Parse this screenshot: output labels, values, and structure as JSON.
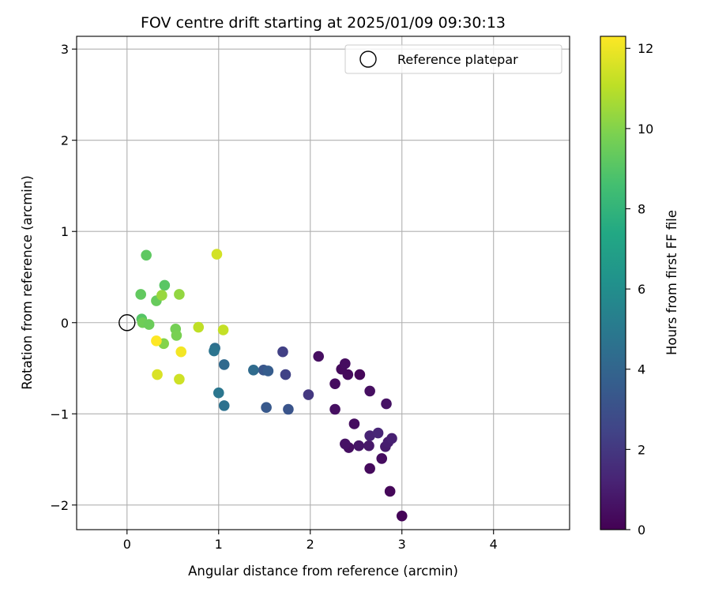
{
  "chart_data": {
    "type": "scatter",
    "title": "FOV centre drift starting at 2025/01/09 09:30:13",
    "xlabel": "Angular distance from reference (arcmin)",
    "ylabel": "Rotation from reference (arcmin)",
    "xlim": [
      -0.55,
      4.83
    ],
    "ylim": [
      -2.27,
      3.14
    ],
    "x_ticks": [
      0,
      1,
      2,
      3,
      4
    ],
    "y_ticks": [
      -2,
      -1,
      0,
      1,
      2,
      3
    ],
    "x_tick_labels": [
      "0",
      "1",
      "2",
      "3",
      "4"
    ],
    "y_tick_labels": [
      "−2",
      "−1",
      "0",
      "1",
      "2",
      "3"
    ],
    "grid": true,
    "legend": {
      "placement": "top-right",
      "entries": [
        {
          "label": "Reference platepar",
          "marker": "open-circle",
          "color": "#000000"
        }
      ]
    },
    "reference_point": {
      "x": 0,
      "y": 0
    },
    "colorbar": {
      "label": "Hours from first FF file",
      "colormap": "viridis",
      "range": [
        0,
        12.3
      ],
      "ticks": [
        0,
        2,
        4,
        6,
        8,
        10,
        12
      ],
      "tick_labels": [
        "0",
        "2",
        "4",
        "6",
        "8",
        "10",
        "12"
      ]
    },
    "points": [
      {
        "x": 3.0,
        "y": -2.12,
        "c": 0.1
      },
      {
        "x": 2.87,
        "y": -1.85,
        "c": 0.2
      },
      {
        "x": 2.65,
        "y": -1.6,
        "c": 0.3
      },
      {
        "x": 2.78,
        "y": -1.49,
        "c": 0.4
      },
      {
        "x": 2.42,
        "y": -1.37,
        "c": 0.5
      },
      {
        "x": 2.38,
        "y": -1.33,
        "c": 0.6
      },
      {
        "x": 2.53,
        "y": -1.35,
        "c": 0.7
      },
      {
        "x": 2.64,
        "y": -1.35,
        "c": 0.8
      },
      {
        "x": 2.82,
        "y": -1.36,
        "c": 0.9
      },
      {
        "x": 2.85,
        "y": -1.31,
        "c": 1.0
      },
      {
        "x": 2.89,
        "y": -1.27,
        "c": 1.1
      },
      {
        "x": 2.65,
        "y": -1.24,
        "c": 1.2
      },
      {
        "x": 2.74,
        "y": -1.21,
        "c": 1.3
      },
      {
        "x": 2.48,
        "y": -1.11,
        "c": 0.4
      },
      {
        "x": 2.27,
        "y": -0.95,
        "c": 0.5
      },
      {
        "x": 2.83,
        "y": -0.89,
        "c": 0.6
      },
      {
        "x": 2.65,
        "y": -0.75,
        "c": 0.5
      },
      {
        "x": 2.27,
        "y": -0.67,
        "c": 0.4
      },
      {
        "x": 2.41,
        "y": -0.57,
        "c": 0.3
      },
      {
        "x": 2.54,
        "y": -0.57,
        "c": 0.2
      },
      {
        "x": 2.34,
        "y": -0.51,
        "c": 0.3
      },
      {
        "x": 2.38,
        "y": -0.45,
        "c": 0.4
      },
      {
        "x": 2.09,
        "y": -0.37,
        "c": 0.5
      },
      {
        "x": 1.98,
        "y": -0.79,
        "c": 2.0
      },
      {
        "x": 1.73,
        "y": -0.57,
        "c": 2.4
      },
      {
        "x": 1.7,
        "y": -0.32,
        "c": 2.3
      },
      {
        "x": 1.76,
        "y": -0.95,
        "c": 3.2
      },
      {
        "x": 1.52,
        "y": -0.93,
        "c": 3.4
      },
      {
        "x": 1.49,
        "y": -0.52,
        "c": 3.3
      },
      {
        "x": 1.54,
        "y": -0.53,
        "c": 3.6
      },
      {
        "x": 1.38,
        "y": -0.52,
        "c": 4.3
      },
      {
        "x": 1.06,
        "y": -0.46,
        "c": 4.2
      },
      {
        "x": 1.06,
        "y": -0.91,
        "c": 4.6
      },
      {
        "x": 1.0,
        "y": -0.77,
        "c": 4.8
      },
      {
        "x": 0.96,
        "y": -0.28,
        "c": 4.5
      },
      {
        "x": 0.95,
        "y": -0.31,
        "c": 4.7
      },
      {
        "x": 0.21,
        "y": 0.74,
        "c": 9.2
      },
      {
        "x": 0.15,
        "y": 0.31,
        "c": 9.3
      },
      {
        "x": 0.41,
        "y": 0.41,
        "c": 9.1
      },
      {
        "x": 0.32,
        "y": 0.24,
        "c": 9.4
      },
      {
        "x": 0.16,
        "y": 0.04,
        "c": 9.0
      },
      {
        "x": 0.17,
        "y": 0.0,
        "c": 9.6
      },
      {
        "x": 0.24,
        "y": -0.02,
        "c": 9.5
      },
      {
        "x": 0.53,
        "y": -0.07,
        "c": 9.7
      },
      {
        "x": 0.54,
        "y": -0.14,
        "c": 9.8
      },
      {
        "x": 0.4,
        "y": -0.23,
        "c": 10.0
      },
      {
        "x": 0.38,
        "y": 0.3,
        "c": 10.4
      },
      {
        "x": 0.57,
        "y": 0.31,
        "c": 10.3
      },
      {
        "x": 0.78,
        "y": -0.05,
        "c": 11.1
      },
      {
        "x": 1.05,
        "y": -0.08,
        "c": 11.2
      },
      {
        "x": 0.98,
        "y": 0.75,
        "c": 11.5
      },
      {
        "x": 0.32,
        "y": -0.2,
        "c": 12.3
      },
      {
        "x": 0.59,
        "y": -0.32,
        "c": 12.1
      },
      {
        "x": 0.33,
        "y": -0.57,
        "c": 11.6
      },
      {
        "x": 0.57,
        "y": -0.62,
        "c": 11.4
      }
    ]
  }
}
